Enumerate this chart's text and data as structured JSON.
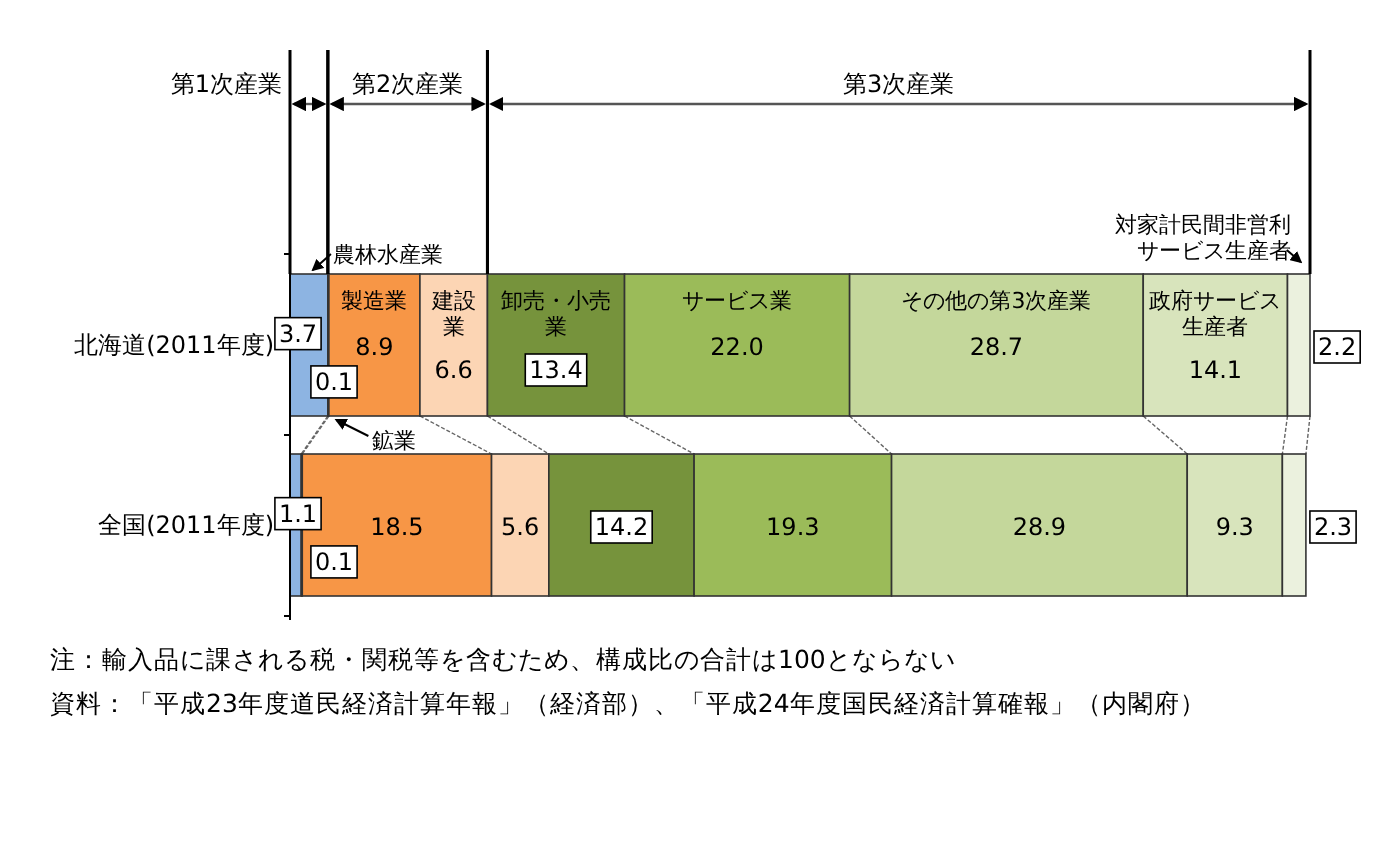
{
  "chart_data": {
    "type": "bar",
    "orientation": "horizontal",
    "stacked": true,
    "categories": [
      "北海道(2011年度)",
      "全国(2011年度)"
    ],
    "series": [
      {
        "name": "農林水産業",
        "color": "#8db4e2",
        "values": [
          3.7,
          1.1
        ],
        "value_labels": [
          "3.7",
          "1.1"
        ]
      },
      {
        "name": "鉱業",
        "color": "#e26b0a",
        "values": [
          0.1,
          0.1
        ],
        "value_labels": [
          "0.1",
          "0.1"
        ]
      },
      {
        "name": "製造業",
        "color": "#f79646",
        "values": [
          8.9,
          18.5
        ],
        "value_labels": [
          "8.9",
          "18.5"
        ]
      },
      {
        "name": "建設業",
        "color": "#fcd5b4",
        "values": [
          6.6,
          5.6
        ],
        "value_labels": [
          "6.6",
          "5.6"
        ]
      },
      {
        "name": "卸売・小売業",
        "color": "#76933c",
        "values": [
          13.4,
          14.2
        ],
        "value_labels": [
          "13.4",
          "14.2"
        ]
      },
      {
        "name": "サービス業",
        "color": "#9bbb59",
        "values": [
          22.0,
          19.3
        ],
        "value_labels": [
          "22.0",
          "19.3"
        ]
      },
      {
        "name": "その他の第3次産業",
        "color": "#c4d79b",
        "values": [
          28.7,
          28.9
        ],
        "value_labels": [
          "28.7",
          "28.9"
        ]
      },
      {
        "name": "政府サービス生産者",
        "color": "#d8e4bc",
        "values": [
          14.1,
          9.3
        ],
        "value_labels": [
          "14.1",
          "9.3"
        ]
      },
      {
        "name": "対家計民間非営利サービス生産者",
        "color": "#ebf1de",
        "values": [
          2.2,
          2.3
        ],
        "value_labels": [
          "2.2",
          "2.3"
        ]
      }
    ],
    "annotations": [
      "第1次産業",
      "第2次産業",
      "第3次産業",
      "注：輸入品に課される税・関税等を含むため、構成比の合計は100とならない",
      "資料：「平成23年度道民経済計算年報」（経済部）、「平成24年度国民経済計算確報」（内閣府）"
    ]
  }
}
